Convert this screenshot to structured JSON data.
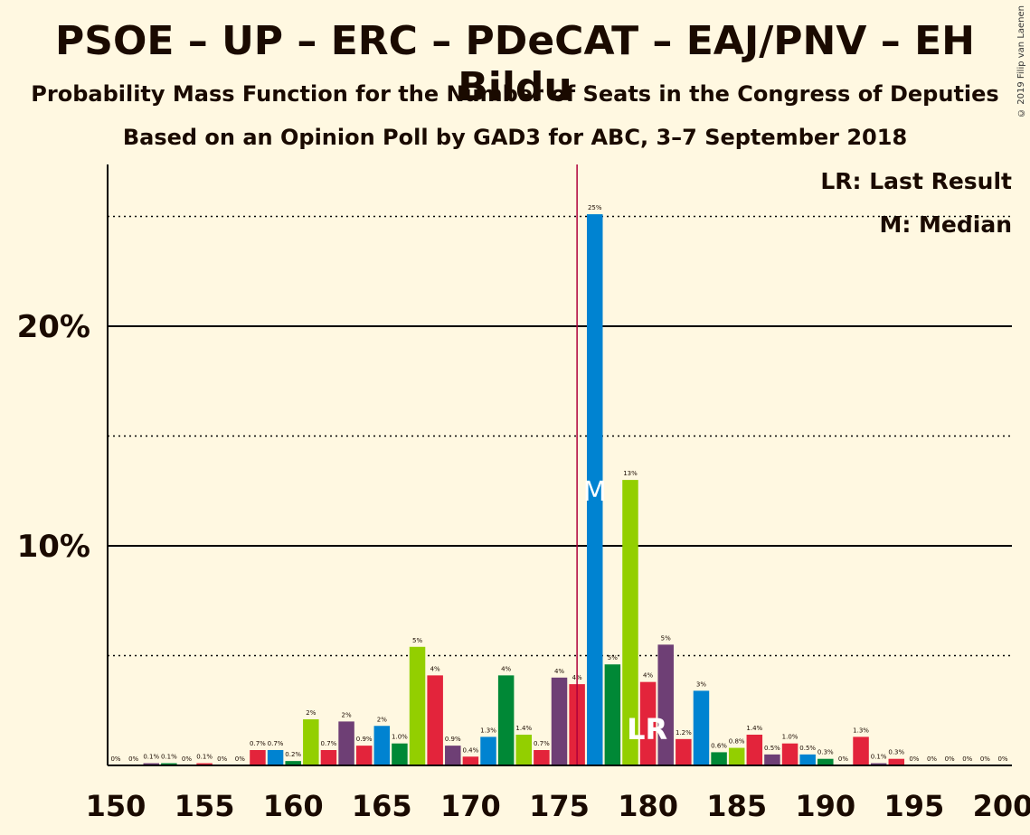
{
  "title": "PSOE – UP – ERC – PDeCAT – EAJ/PNV – EH Bildu",
  "subtitle": "Probability Mass Function for the Number of Seats in the Congress of Deputies",
  "subtitle2": "Based on an Opinion Poll by GAD3 for ABC, 3–7 September 2018",
  "copyright": "© 2019 Filip van Laenen",
  "legend": {
    "last_result": "LR: Last Result",
    "median": "M: Median"
  },
  "colors": {
    "background": "#fff8e1",
    "red": "#e3243b",
    "blue": "#0083d1",
    "purple": "#6e3f75",
    "green": "#008836",
    "lime": "#93cf00",
    "majority_line": "#b0003a"
  },
  "chart_data": {
    "type": "bar",
    "x": [
      150,
      151,
      152,
      153,
      154,
      155,
      156,
      157,
      158,
      159,
      160,
      161,
      162,
      163,
      164,
      165,
      166,
      167,
      168,
      169,
      170,
      171,
      172,
      173,
      174,
      175,
      176,
      177,
      178,
      179,
      180,
      181,
      182,
      183,
      184,
      185,
      186,
      187,
      188,
      189,
      190,
      191,
      192,
      193,
      194,
      195,
      196,
      197,
      198,
      199,
      200
    ],
    "values": [
      0.0,
      0.0,
      0.1,
      0.1,
      0.0,
      0.1,
      0.0,
      0.0,
      0.7,
      0.7,
      0.2,
      2.1,
      0.7,
      2.0,
      0.9,
      1.8,
      1.0,
      5.4,
      4.1,
      0.9,
      0.4,
      1.3,
      4.1,
      1.4,
      0.7,
      4.0,
      3.7,
      25.1,
      4.6,
      13.0,
      3.8,
      5.5,
      1.2,
      3.4,
      0.6,
      0.8,
      1.4,
      0.5,
      1.0,
      0.5,
      0.3,
      0.0,
      1.3,
      0.1,
      0.3,
      0.0,
      0.0,
      0.0,
      0.0,
      0.0,
      0.0
    ],
    "data_labels": [
      "0%",
      "0%",
      "0.1%",
      "0.1%",
      "0%",
      "0.1%",
      "0%",
      "0%",
      "0.7%",
      "0.7%",
      "0.2%",
      "2%",
      "0.7%",
      "2%",
      "0.9%",
      "2%",
      "1.0%",
      "5%",
      "4%",
      "0.9%",
      "0.4%",
      "1.3%",
      "4%",
      "1.4%",
      "0.7%",
      "4%",
      "4%",
      "25%",
      "5%",
      "13%",
      "4%",
      "5%",
      "1.2%",
      "3%",
      "0.6%",
      "0.8%",
      "1.4%",
      "0.5%",
      "1.0%",
      "0.5%",
      "0.3%",
      "0%",
      "1.3%",
      "0.1%",
      "0.3%",
      "0%",
      "0%",
      "0%",
      "0%",
      "0%",
      "0%"
    ],
    "bar_colors": [
      "red",
      "blue",
      "purple",
      "green",
      "lime",
      "red",
      "blue",
      "purple",
      "red",
      "blue",
      "green",
      "lime",
      "red",
      "purple",
      "red",
      "blue",
      "green",
      "lime",
      "red",
      "purple",
      "red",
      "blue",
      "green",
      "lime",
      "red",
      "purple",
      "red",
      "blue",
      "green",
      "lime",
      "red",
      "purple",
      "red",
      "blue",
      "green",
      "lime",
      "red",
      "purple",
      "red",
      "blue",
      "green",
      "lime",
      "red",
      "purple",
      "red",
      "blue",
      "green",
      "lime",
      "red",
      "purple",
      "red"
    ],
    "x_ticks": [
      150,
      155,
      160,
      165,
      170,
      175,
      180,
      185,
      190,
      195,
      200
    ],
    "x_tick_labels": [
      "150",
      "155",
      "160",
      "165",
      "170",
      "175",
      "180",
      "185",
      "190",
      "195",
      "200"
    ],
    "y_ticks": [
      10,
      20
    ],
    "y_tick_labels": [
      "10%",
      "20%"
    ],
    "y_dotted_gridlines": [
      5,
      15,
      25
    ],
    "xlim": [
      150,
      200
    ],
    "ylim": [
      0,
      27.5
    ],
    "majority_line": 176,
    "median": 177,
    "median_label": "M",
    "last_result": 180,
    "last_result_label": "LR"
  }
}
